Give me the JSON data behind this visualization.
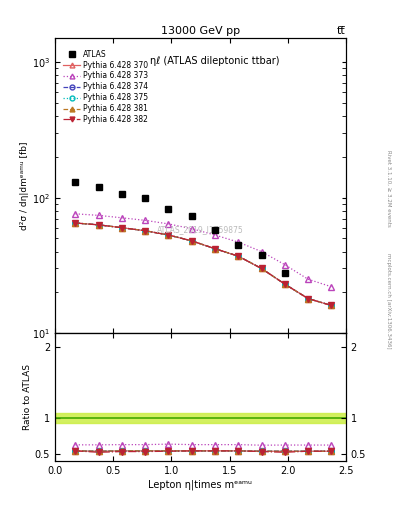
{
  "title_top": "13000 GeV pp",
  "title_right": "tt̅",
  "ylabel_main": "d²σ / dη|dmᵉᵃᵐᵘ [fb]",
  "ylabel_ratio": "Ratio to ATLAS",
  "xlabel": "Lepton η|times mᵉᵃᵐᵘ",
  "annotation_main": "ηℓ (ATLAS dileptonic ttbar)",
  "watermark": "ATLAS_2019_I1759875",
  "atlas_x": [
    0.175,
    0.375,
    0.575,
    0.775,
    0.975,
    1.175,
    1.375,
    1.575,
    1.775,
    1.975
  ],
  "atlas_y": [
    130,
    120,
    107,
    99,
    83,
    73,
    58,
    45,
    38,
    28
  ],
  "series": [
    {
      "label": "Pythia 6.428 370",
      "color": "#e06060",
      "linestyle": "-",
      "marker": "^",
      "markerfacecolor": "none",
      "markersize": 4,
      "x": [
        0.175,
        0.375,
        0.575,
        0.775,
        0.975,
        1.175,
        1.375,
        1.575,
        1.775,
        1.975,
        2.175,
        2.375
      ],
      "y": [
        65,
        63,
        60,
        57,
        53,
        48,
        42,
        37,
        30,
        23,
        18,
        16
      ]
    },
    {
      "label": "Pythia 6.428 373",
      "color": "#bb44bb",
      "linestyle": ":",
      "marker": "^",
      "markerfacecolor": "none",
      "markersize": 4,
      "x": [
        0.175,
        0.375,
        0.575,
        0.775,
        0.975,
        1.175,
        1.375,
        1.575,
        1.775,
        1.975,
        2.175,
        2.375
      ],
      "y": [
        76,
        74,
        71,
        68,
        64,
        59,
        53,
        47,
        40,
        32,
        25,
        22
      ]
    },
    {
      "label": "Pythia 6.428 374",
      "color": "#4444bb",
      "linestyle": "--",
      "marker": "o",
      "markerfacecolor": "none",
      "markersize": 4,
      "x": [
        0.175,
        0.375,
        0.575,
        0.775,
        0.975,
        1.175,
        1.375,
        1.575,
        1.775,
        1.975,
        2.175,
        2.375
      ],
      "y": [
        65,
        63,
        60,
        57,
        53,
        48,
        42,
        37,
        30,
        23,
        18,
        16
      ]
    },
    {
      "label": "Pythia 6.428 375",
      "color": "#00bbbb",
      "linestyle": ":",
      "marker": "o",
      "markerfacecolor": "none",
      "markersize": 4,
      "x": [
        0.175,
        0.375,
        0.575,
        0.775,
        0.975,
        1.175,
        1.375,
        1.575,
        1.775,
        1.975,
        2.175,
        2.375
      ],
      "y": [
        65,
        63,
        60,
        57,
        53,
        48,
        42,
        37,
        30,
        23,
        18,
        16
      ]
    },
    {
      "label": "Pythia 6.428 381",
      "color": "#bb7722",
      "linestyle": "--",
      "marker": "^",
      "markerfacecolor": "#bb7722",
      "markersize": 4,
      "x": [
        0.175,
        0.375,
        0.575,
        0.775,
        0.975,
        1.175,
        1.375,
        1.575,
        1.775,
        1.975,
        2.175,
        2.375
      ],
      "y": [
        65,
        63,
        60,
        57,
        53,
        48,
        42,
        37,
        30,
        23,
        18,
        16
      ]
    },
    {
      "label": "Pythia 6.428 382",
      "color": "#bb2233",
      "linestyle": "-.",
      "marker": "v",
      "markerfacecolor": "#bb2233",
      "markersize": 4,
      "x": [
        0.175,
        0.375,
        0.575,
        0.775,
        0.975,
        1.175,
        1.375,
        1.575,
        1.775,
        1.975,
        2.175,
        2.375
      ],
      "y": [
        65,
        63,
        60,
        57,
        53,
        48,
        42,
        37,
        30,
        23,
        18,
        16
      ]
    }
  ],
  "ratio_series": [
    {
      "color": "#e06060",
      "linestyle": "-",
      "marker": "^",
      "markerfacecolor": "none",
      "markersize": 4,
      "x": [
        0.175,
        0.375,
        0.575,
        0.775,
        0.975,
        1.175,
        1.375,
        1.575,
        1.775,
        1.975,
        2.175,
        2.375
      ],
      "y": [
        0.54,
        0.535,
        0.54,
        0.54,
        0.54,
        0.54,
        0.54,
        0.54,
        0.535,
        0.535,
        0.535,
        0.535
      ]
    },
    {
      "color": "#bb44bb",
      "linestyle": ":",
      "marker": "^",
      "markerfacecolor": "none",
      "markersize": 4,
      "x": [
        0.175,
        0.375,
        0.575,
        0.775,
        0.975,
        1.175,
        1.375,
        1.575,
        1.775,
        1.975,
        2.175,
        2.375
      ],
      "y": [
        0.625,
        0.625,
        0.628,
        0.628,
        0.635,
        0.628,
        0.628,
        0.628,
        0.62,
        0.622,
        0.622,
        0.622
      ]
    },
    {
      "color": "#4444bb",
      "linestyle": "--",
      "marker": "o",
      "markerfacecolor": "none",
      "markersize": 4,
      "x": [
        0.175,
        0.375,
        0.575,
        0.775,
        0.975,
        1.175,
        1.375,
        1.575,
        1.775,
        1.975,
        2.175,
        2.375
      ],
      "y": [
        0.54,
        0.535,
        0.54,
        0.54,
        0.54,
        0.54,
        0.54,
        0.54,
        0.535,
        0.535,
        0.535,
        0.535
      ]
    },
    {
      "color": "#00bbbb",
      "linestyle": ":",
      "marker": "o",
      "markerfacecolor": "none",
      "markersize": 4,
      "x": [
        0.175,
        0.375,
        0.575,
        0.775,
        0.975,
        1.175,
        1.375,
        1.575,
        1.775,
        1.975,
        2.175,
        2.375
      ],
      "y": [
        0.54,
        0.535,
        0.54,
        0.54,
        0.54,
        0.54,
        0.54,
        0.54,
        0.535,
        0.535,
        0.535,
        0.535
      ]
    },
    {
      "color": "#bb7722",
      "linestyle": "--",
      "marker": "^",
      "markerfacecolor": "#bb7722",
      "markersize": 4,
      "x": [
        0.175,
        0.375,
        0.575,
        0.775,
        0.975,
        1.175,
        1.375,
        1.575,
        1.775,
        1.975,
        2.175,
        2.375
      ],
      "y": [
        0.54,
        0.535,
        0.54,
        0.54,
        0.54,
        0.54,
        0.54,
        0.54,
        0.535,
        0.535,
        0.535,
        0.535
      ]
    },
    {
      "color": "#bb2233",
      "linestyle": "-.",
      "marker": "v",
      "markerfacecolor": "#bb2233",
      "markersize": 4,
      "x": [
        0.175,
        0.375,
        0.575,
        0.775,
        0.975,
        1.175,
        1.375,
        1.575,
        1.775,
        1.975,
        2.175,
        2.375
      ],
      "y": [
        0.54,
        0.52,
        0.53,
        0.53,
        0.535,
        0.54,
        0.54,
        0.54,
        0.53,
        0.52,
        0.535,
        0.535
      ]
    }
  ],
  "right_label_top": "Rivet 3.1.10, ≥ 3.2M events",
  "right_label_bottom": "mcplots.cern.ch [arXiv:1306.3436]",
  "xlim": [
    0,
    2.5
  ],
  "ylim_main_log": [
    10,
    1500
  ],
  "background_color": "#ffffff"
}
